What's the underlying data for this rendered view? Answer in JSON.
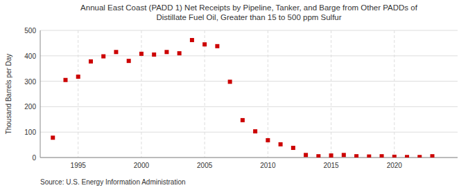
{
  "chart_data": {
    "type": "scatter",
    "title": "Annual East Coast (PADD 1) Net Receipts by Pipeline, Tanker, and Barge from Other PADDs of\nDistillate Fuel Oil, Greater than 15 to 500 ppm Sulfur",
    "ylabel": "Thousand Barrels per Day",
    "source": "Source: U.S. Energy Information Administration",
    "color": "#cc0000",
    "marker": "square",
    "grid": true,
    "xlim": [
      1992,
      2025
    ],
    "xticks": [
      1995,
      2000,
      2005,
      2010,
      2015,
      2020
    ],
    "ylim": [
      0,
      500
    ],
    "yticks": [
      0,
      100,
      200,
      300,
      400,
      500
    ],
    "x": [
      1993,
      1994,
      1995,
      1996,
      1997,
      1998,
      1999,
      2000,
      2001,
      2002,
      2003,
      2004,
      2005,
      2006,
      2007,
      2008,
      2009,
      2010,
      2011,
      2012,
      2013,
      2014,
      2015,
      2016,
      2017,
      2018,
      2019,
      2020,
      2021,
      2022,
      2023
    ],
    "values": [
      78,
      305,
      318,
      378,
      398,
      415,
      380,
      408,
      405,
      415,
      410,
      462,
      445,
      438,
      298,
      147,
      103,
      68,
      52,
      38,
      10,
      5,
      8,
      10,
      5,
      4,
      5,
      3,
      2,
      2,
      5
    ]
  }
}
